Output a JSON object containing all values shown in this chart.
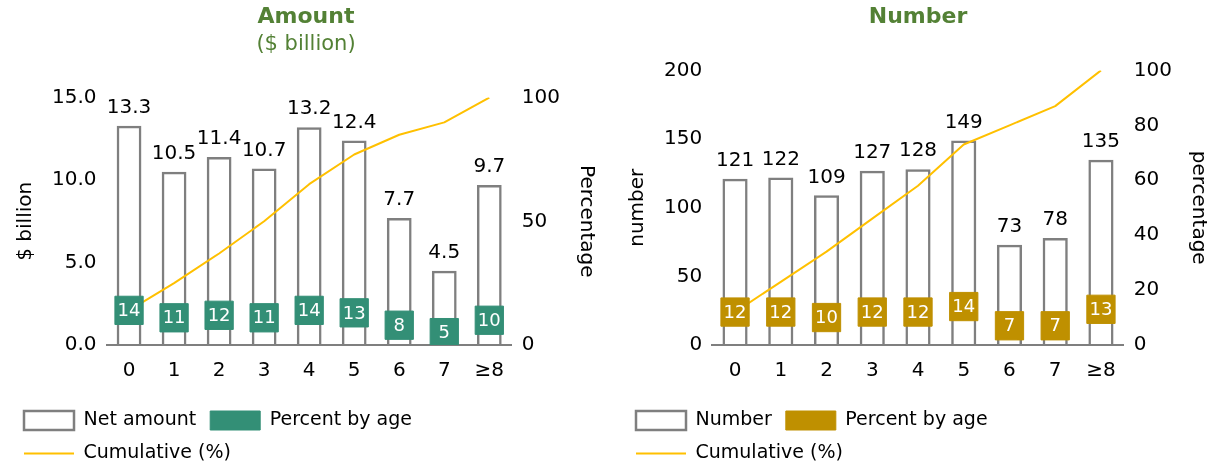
{
  "chart_data": [
    {
      "type": "bar",
      "title": "Amount",
      "subtitle": "($ billion)",
      "ylabel": "$ billion",
      "y2label": "Percentage",
      "categories": [
        "0",
        "1",
        "2",
        "3",
        "4",
        "5",
        "6",
        "7",
        "≥8"
      ],
      "ylim": [
        0,
        15
      ],
      "yticks": [
        {
          "value": 0,
          "label": "0.0"
        },
        {
          "value": 5,
          "label": "5.0"
        },
        {
          "value": 10,
          "label": "10.0"
        },
        {
          "value": 15,
          "label": "15.0"
        }
      ],
      "y2lim": [
        0,
        100
      ],
      "y2ticks": [
        0,
        50,
        100
      ],
      "grid": false,
      "legend": "bottom",
      "series": [
        {
          "name": "Net amount",
          "color": "#7f7f7f",
          "values": [
            13.3,
            10.5,
            11.4,
            10.7,
            13.2,
            12.4,
            7.7,
            4.5,
            9.7
          ],
          "value_labels": [
            "13.3",
            "10.5",
            "11.4",
            "10.7",
            "13.2",
            "12.4",
            "7.7",
            "4.5",
            "9.7"
          ]
        },
        {
          "name": "Percent by age",
          "type": "scatter",
          "axis": "y2",
          "marker": "square",
          "color": "#338f76",
          "values": [
            14,
            11,
            12,
            11,
            14,
            13,
            8,
            5,
            10
          ],
          "value_labels": [
            "14",
            "11",
            "12",
            "11",
            "14",
            "13",
            "8",
            "5",
            "10"
          ]
        },
        {
          "name": "Cumulative (%)",
          "type": "line",
          "axis": "y2",
          "marker": "none",
          "color": "#ffc000",
          "values": [
            14,
            25,
            37,
            50,
            65,
            77,
            85,
            90,
            100
          ]
        }
      ]
    },
    {
      "type": "bar",
      "title": "Number",
      "ylabel": "number",
      "y2label": "percentage",
      "categories": [
        "0",
        "1",
        "2",
        "3",
        "4",
        "5",
        "6",
        "7",
        "≥8"
      ],
      "ylim": [
        0,
        200
      ],
      "yticks": [
        0,
        50,
        100,
        150,
        200
      ],
      "y2lim": [
        0,
        100
      ],
      "y2ticks": [
        0,
        20,
        40,
        60,
        80,
        100
      ],
      "grid": false,
      "legend": "bottom",
      "series": [
        {
          "name": "Number",
          "color": "#7f7f7f",
          "values": [
            121,
            122,
            109,
            127,
            128,
            149,
            73,
            78,
            135
          ],
          "value_labels": [
            "121",
            "122",
            "109",
            "127",
            "128",
            "149",
            "73",
            "78",
            "135"
          ]
        },
        {
          "name": "Percent by age",
          "type": "scatter",
          "axis": "y2",
          "marker": "square",
          "color": "#bf9000",
          "values": [
            12,
            12,
            10,
            12,
            12,
            14,
            7,
            7,
            13
          ],
          "value_labels": [
            "12",
            "12",
            "10",
            "12",
            "12",
            "14",
            "7",
            "7",
            "13"
          ]
        },
        {
          "name": "Cumulative (%)",
          "type": "line",
          "axis": "y2",
          "marker": "none",
          "color": "#ffc000",
          "values": [
            12,
            23,
            34,
            46,
            58,
            73,
            80,
            87,
            100
          ]
        }
      ]
    }
  ]
}
